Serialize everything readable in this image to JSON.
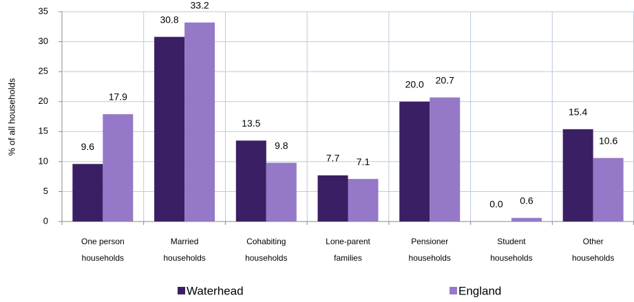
{
  "chart_data": {
    "type": "bar",
    "y_label": "% of all households",
    "categories": [
      [
        "One person",
        "households"
      ],
      [
        "Married",
        "households"
      ],
      [
        "Cohabiting",
        "households"
      ],
      [
        "Lone-parent",
        "families"
      ],
      [
        "Pensioner",
        "households"
      ],
      [
        "Student",
        "households"
      ],
      [
        "Other",
        "households"
      ]
    ],
    "series": [
      {
        "name": "Waterhead",
        "color": "#3b1f64",
        "values": [
          9.6,
          30.8,
          13.5,
          7.7,
          20,
          0,
          15.4
        ],
        "value_labels": [
          "9.6",
          "30.8",
          "13.5",
          "7.7",
          "20.0",
          "0.0",
          "15.4"
        ]
      },
      {
        "name": "England",
        "color": "#9579c8",
        "values": [
          17.9,
          33.2,
          9.8,
          7.1,
          20.7,
          0.6,
          10.6
        ],
        "value_labels": [
          "17.9",
          "33.2",
          "9.8",
          "7.1",
          "20.7",
          "0.6",
          "10.6"
        ]
      }
    ],
    "ylim": [
      0,
      35
    ],
    "yticks": [
      0,
      5,
      10,
      15,
      20,
      25,
      30,
      35
    ],
    "grid": true,
    "legend": "bottom"
  }
}
